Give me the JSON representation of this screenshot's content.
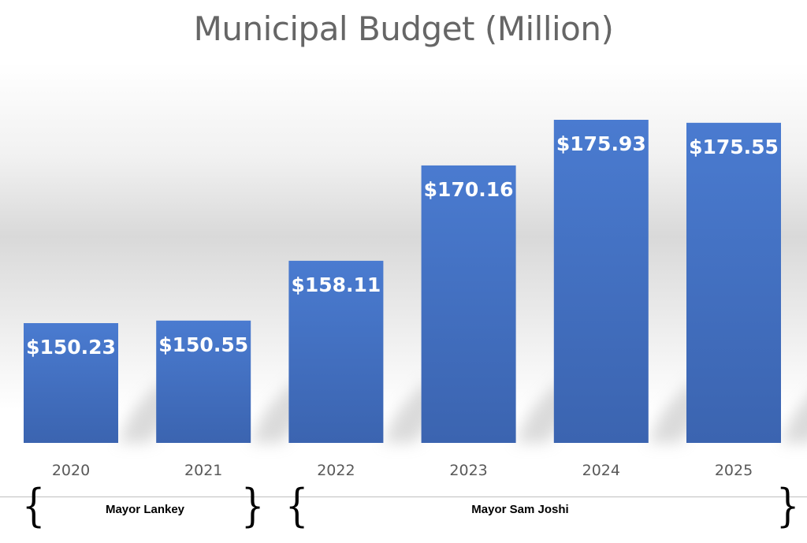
{
  "chart_data": {
    "type": "bar",
    "title": "Municipal Budget (Million)",
    "categories": [
      "2020",
      "2021",
      "2022",
      "2023",
      "2024",
      "2025"
    ],
    "values": [
      150.23,
      150.55,
      158.11,
      170.16,
      175.93,
      175.55
    ],
    "data_labels": [
      "$150.23",
      "$150.55",
      "$158.11",
      "$170.16",
      "$175.93",
      "$175.55"
    ],
    "xlabel": "",
    "ylabel": "",
    "bar_color": "#4472c4",
    "grid": false,
    "legend": "none"
  },
  "annotations": {
    "terms": [
      {
        "label": "Mayor Lankey",
        "years": [
          "2020",
          "2021"
        ]
      },
      {
        "label": "Mayor Sam Joshi",
        "years": [
          "2022",
          "2023",
          "2024",
          "2025"
        ]
      }
    ]
  }
}
